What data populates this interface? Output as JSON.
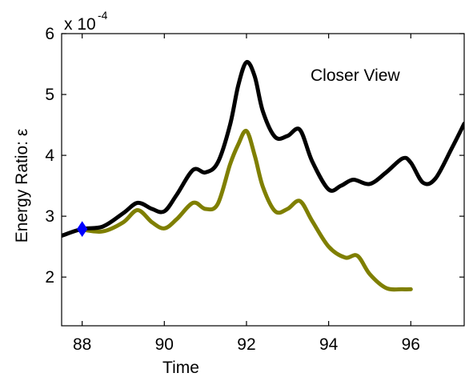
{
  "chart_data": {
    "type": "line",
    "title": "",
    "xlabel": "Time",
    "ylabel": "Energy Ratio: ε",
    "xlim": [
      87.5,
      97.3
    ],
    "ylim": [
      1.2,
      6.0
    ],
    "y_multiplier": {
      "base": "x 10",
      "exponent": "-4"
    },
    "xticks": [
      "88",
      "90",
      "92",
      "94",
      "96"
    ],
    "yticks": [
      "2",
      "3",
      "4",
      "5",
      "6"
    ],
    "annotation": "Closer View",
    "grid": false,
    "legend": "none",
    "series": [
      {
        "color": "#000000",
        "x": [
          87.5,
          88.0,
          88.5,
          89.0,
          89.35,
          89.7,
          90.0,
          90.3,
          90.7,
          91.0,
          91.3,
          91.6,
          91.8,
          92.0,
          92.2,
          92.4,
          92.7,
          93.0,
          93.3,
          93.6,
          94.0,
          94.3,
          94.6,
          95.0,
          95.4,
          95.8,
          96.0,
          96.3,
          96.6,
          97.0,
          97.3
        ],
        "values": [
          2.68,
          2.79,
          2.83,
          3.05,
          3.22,
          3.12,
          3.08,
          3.35,
          3.76,
          3.72,
          3.88,
          4.5,
          5.15,
          5.53,
          5.3,
          4.72,
          4.3,
          4.32,
          4.42,
          3.9,
          3.44,
          3.5,
          3.6,
          3.53,
          3.72,
          3.95,
          3.88,
          3.55,
          3.62,
          4.12,
          4.52
        ]
      },
      {
        "color": "#7f7f00",
        "x": [
          88.0,
          88.5,
          89.0,
          89.35,
          89.7,
          90.0,
          90.3,
          90.7,
          91.0,
          91.3,
          91.6,
          91.8,
          92.0,
          92.2,
          92.4,
          92.7,
          93.0,
          93.3,
          93.6,
          94.0,
          94.4,
          94.7,
          95.0,
          95.4,
          95.8,
          96.0
        ],
        "values": [
          2.78,
          2.75,
          2.9,
          3.1,
          2.9,
          2.8,
          2.95,
          3.22,
          3.12,
          3.2,
          3.85,
          4.18,
          4.4,
          4.0,
          3.48,
          3.08,
          3.12,
          3.25,
          2.92,
          2.5,
          2.32,
          2.35,
          2.05,
          1.82,
          1.8,
          1.8
        ]
      }
    ],
    "marker": {
      "x": 88.0,
      "y": 2.79,
      "shape": "diamond",
      "color": "#0000ff"
    }
  }
}
